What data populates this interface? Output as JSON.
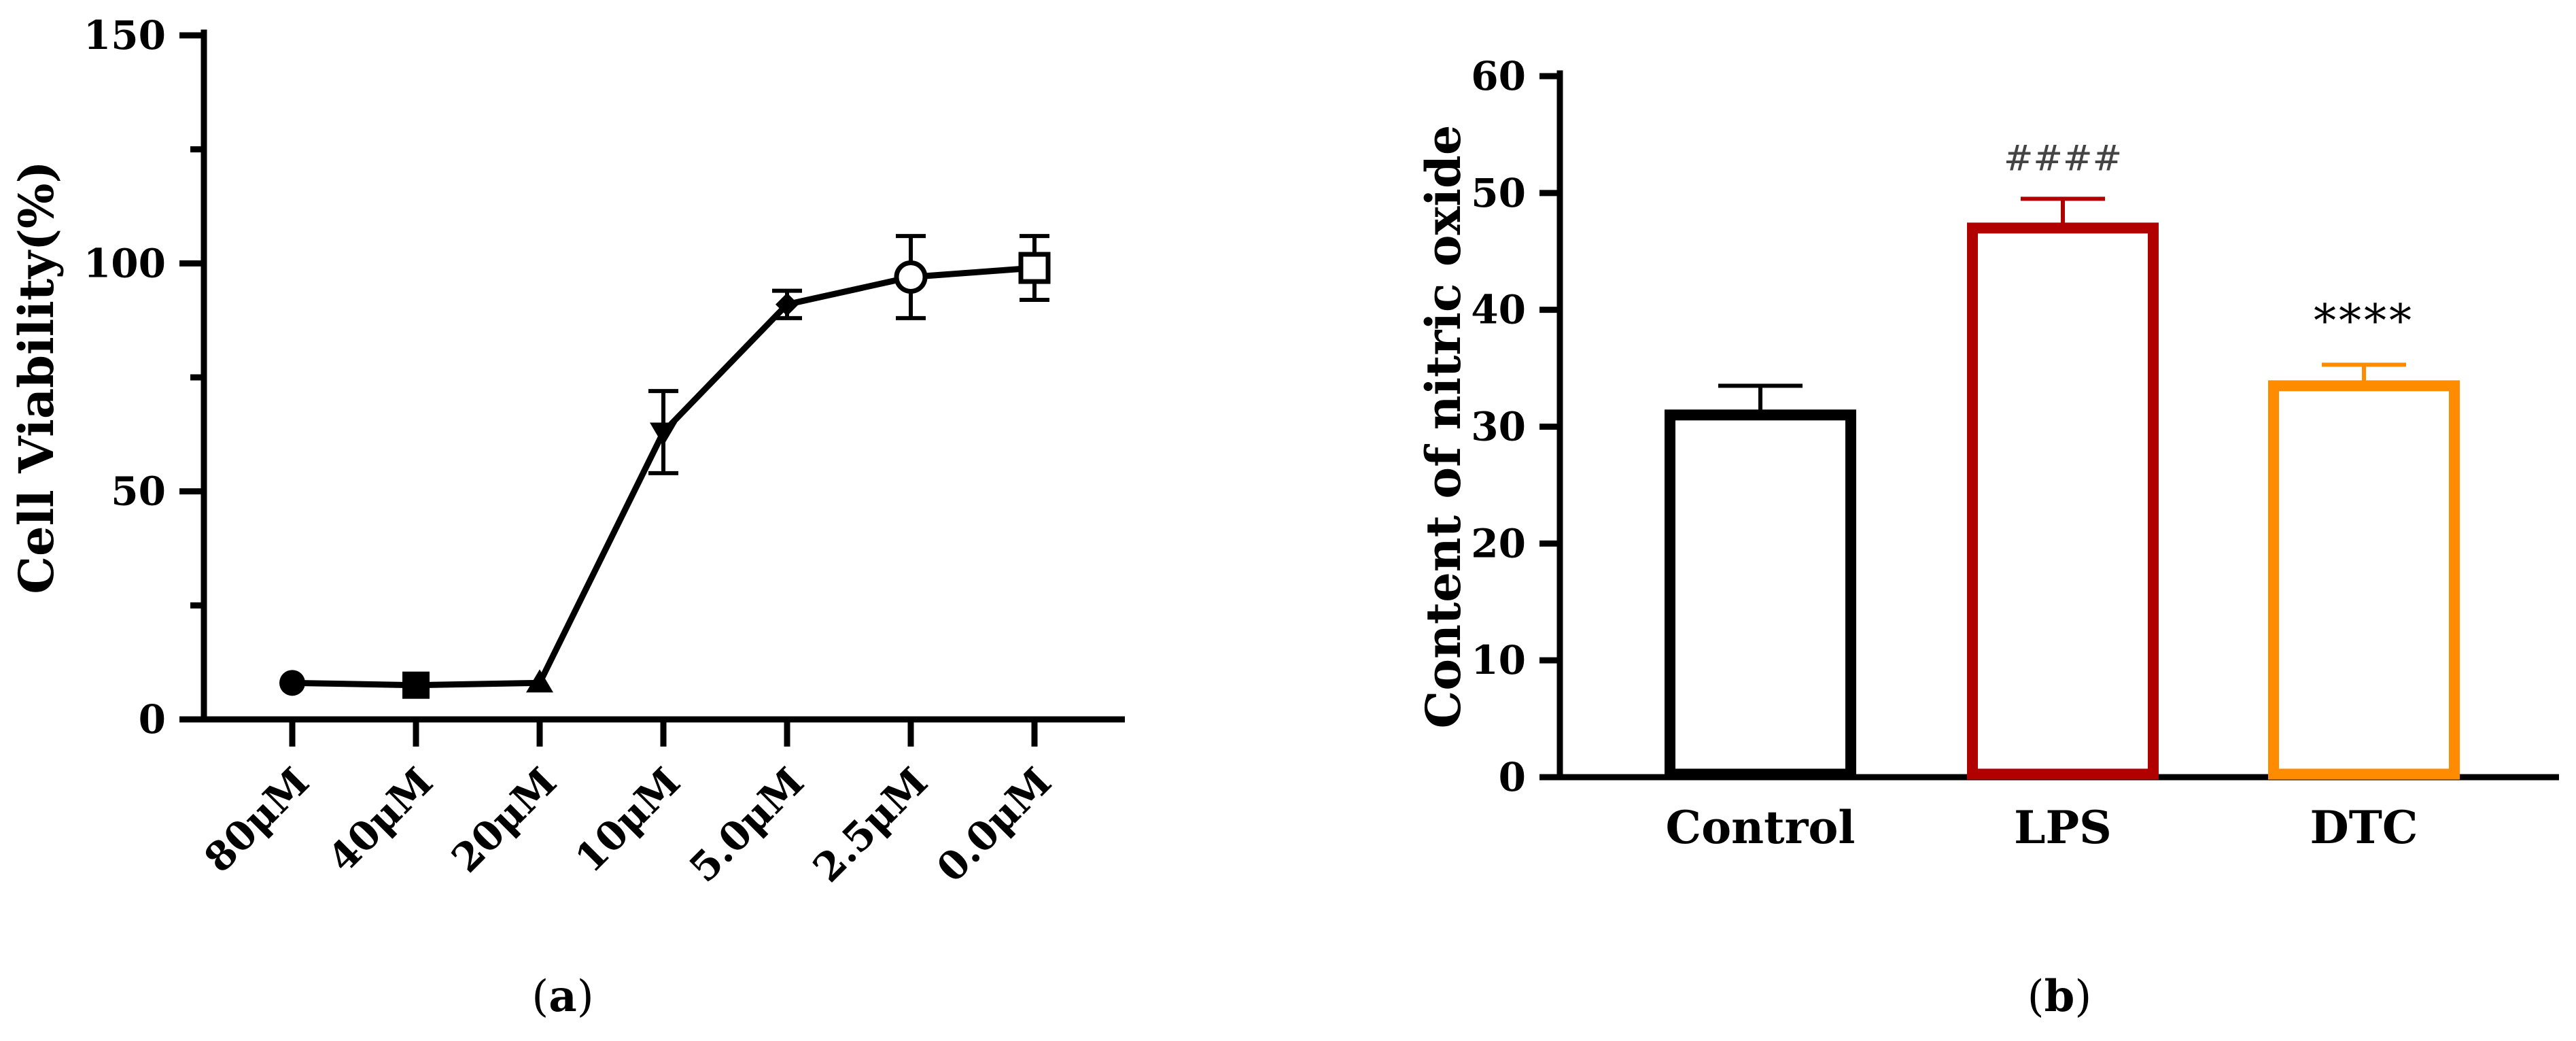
{
  "chart_data": [
    {
      "type": "line",
      "panel_label": "a",
      "x": [
        "80μM",
        "40μM",
        "20μM",
        "10μM",
        "5.0μM",
        "2.5μM",
        "0.0μM"
      ],
      "y": [
        8,
        7.5,
        8,
        63,
        91,
        97,
        99
      ],
      "error": [
        0,
        0,
        0,
        9,
        3,
        9,
        7
      ],
      "markers": [
        "circle-filled",
        "square-filled",
        "triangle-up-filled",
        "triangle-down-filled",
        "diamond-filled",
        "circle-open",
        "square-open"
      ],
      "ylabel": "Cell  Viability(%)",
      "xlabel": "",
      "ylim": [
        0,
        150
      ],
      "yticks": [
        0,
        50,
        100,
        150
      ],
      "grid": false,
      "line_color": "#000000"
    },
    {
      "type": "bar",
      "panel_label": "b",
      "categories": [
        "Control",
        "LPS",
        "DTC"
      ],
      "values": [
        31,
        47,
        33.5
      ],
      "error": [
        2.5,
        2.5,
        1.8
      ],
      "colors": [
        "#000000",
        "#b00000",
        "#ff8c00"
      ],
      "annotations": [
        "",
        "####",
        "****"
      ],
      "ylabel": "Content of nitric oxide",
      "xlabel": "",
      "ylim": [
        0,
        60
      ],
      "yticks": [
        0,
        10,
        20,
        30,
        40,
        50,
        60
      ],
      "grid": false
    }
  ]
}
